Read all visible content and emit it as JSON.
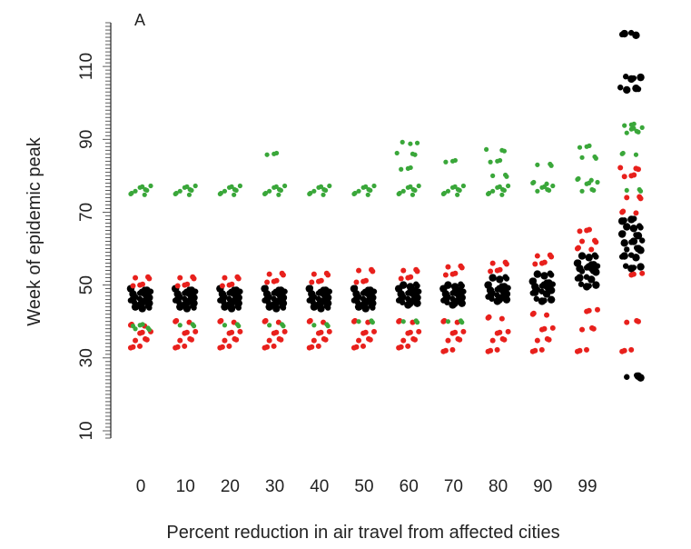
{
  "chart_data": {
    "type": "scatter",
    "panel_label": "A",
    "title": "",
    "xlabel": "Percent reduction in air travel from affected cities",
    "ylabel": "Week of epidemic peak",
    "categories": [
      "0",
      "10",
      "20",
      "30",
      "40",
      "50",
      "60",
      "70",
      "80",
      "90",
      "99",
      ""
    ],
    "yticks": [
      10,
      30,
      50,
      70,
      90,
      110
    ],
    "ylim": [
      8,
      122
    ],
    "grid": false,
    "legend": "none",
    "colors": {
      "black": "#000000",
      "red": "#e8201c",
      "green": "#3aa73a"
    },
    "series": [
      {
        "color": "black",
        "points": [
          [
            0,
            45
          ],
          [
            0,
            46
          ],
          [
            0,
            47
          ],
          [
            0,
            48
          ],
          [
            0,
            49
          ],
          [
            0,
            44
          ],
          [
            1,
            45
          ],
          [
            1,
            46
          ],
          [
            1,
            47
          ],
          [
            1,
            48
          ],
          [
            1,
            49
          ],
          [
            1,
            44
          ],
          [
            2,
            45
          ],
          [
            2,
            46
          ],
          [
            2,
            47
          ],
          [
            2,
            48
          ],
          [
            2,
            49
          ],
          [
            2,
            44
          ],
          [
            3,
            45
          ],
          [
            3,
            46
          ],
          [
            3,
            47
          ],
          [
            3,
            48
          ],
          [
            3,
            49
          ],
          [
            3,
            44
          ],
          [
            4,
            45
          ],
          [
            4,
            46
          ],
          [
            4,
            47
          ],
          [
            4,
            48
          ],
          [
            4,
            49
          ],
          [
            4,
            44
          ],
          [
            5,
            45
          ],
          [
            5,
            46
          ],
          [
            5,
            47
          ],
          [
            5,
            48
          ],
          [
            5,
            49
          ],
          [
            5,
            44
          ],
          [
            6,
            45
          ],
          [
            6,
            46
          ],
          [
            6,
            47
          ],
          [
            6,
            48
          ],
          [
            6,
            49
          ],
          [
            6,
            50
          ],
          [
            7,
            45
          ],
          [
            7,
            46
          ],
          [
            7,
            47
          ],
          [
            7,
            48
          ],
          [
            7,
            49
          ],
          [
            7,
            50
          ],
          [
            8,
            46
          ],
          [
            8,
            47
          ],
          [
            8,
            48
          ],
          [
            8,
            49
          ],
          [
            8,
            50
          ],
          [
            8,
            52
          ],
          [
            9,
            46
          ],
          [
            9,
            48
          ],
          [
            9,
            49
          ],
          [
            9,
            50
          ],
          [
            9,
            51
          ],
          [
            9,
            53
          ],
          [
            10,
            50
          ],
          [
            10,
            52
          ],
          [
            10,
            54
          ],
          [
            10,
            55
          ],
          [
            10,
            56
          ],
          [
            10,
            58
          ],
          [
            11,
            55
          ],
          [
            11,
            58
          ],
          [
            11,
            60
          ],
          [
            11,
            62
          ],
          [
            11,
            64
          ],
          [
            11,
            66
          ],
          [
            11,
            68
          ],
          [
            11,
            104
          ],
          [
            11,
            107
          ],
          [
            11,
            119
          ],
          [
            11,
            25
          ]
        ]
      },
      {
        "color": "red",
        "points": [
          [
            0,
            33
          ],
          [
            0,
            35
          ],
          [
            0,
            37
          ],
          [
            0,
            39
          ],
          [
            0,
            52
          ],
          [
            0,
            50
          ],
          [
            1,
            33
          ],
          [
            1,
            35
          ],
          [
            1,
            37
          ],
          [
            1,
            40
          ],
          [
            1,
            52
          ],
          [
            1,
            50
          ],
          [
            2,
            33
          ],
          [
            2,
            35
          ],
          [
            2,
            37
          ],
          [
            2,
            40
          ],
          [
            2,
            52
          ],
          [
            2,
            50
          ],
          [
            3,
            33
          ],
          [
            3,
            35
          ],
          [
            3,
            37
          ],
          [
            3,
            40
          ],
          [
            3,
            53
          ],
          [
            3,
            51
          ],
          [
            4,
            33
          ],
          [
            4,
            35
          ],
          [
            4,
            37
          ],
          [
            4,
            40
          ],
          [
            4,
            53
          ],
          [
            4,
            51
          ],
          [
            5,
            33
          ],
          [
            5,
            35
          ],
          [
            5,
            37
          ],
          [
            5,
            40
          ],
          [
            5,
            54
          ],
          [
            5,
            51
          ],
          [
            6,
            33
          ],
          [
            6,
            35
          ],
          [
            6,
            37
          ],
          [
            6,
            40
          ],
          [
            6,
            54
          ],
          [
            6,
            52
          ],
          [
            7,
            32
          ],
          [
            7,
            35
          ],
          [
            7,
            37
          ],
          [
            7,
            40
          ],
          [
            7,
            55
          ],
          [
            7,
            53
          ],
          [
            8,
            32
          ],
          [
            8,
            35
          ],
          [
            8,
            37
          ],
          [
            8,
            41
          ],
          [
            8,
            56
          ],
          [
            8,
            54
          ],
          [
            9,
            32
          ],
          [
            9,
            35
          ],
          [
            9,
            38
          ],
          [
            9,
            42
          ],
          [
            9,
            58
          ],
          [
            9,
            56
          ],
          [
            10,
            32
          ],
          [
            10,
            38
          ],
          [
            10,
            43
          ],
          [
            10,
            60
          ],
          [
            10,
            62
          ],
          [
            10,
            65
          ],
          [
            11,
            32
          ],
          [
            11,
            40
          ],
          [
            11,
            53
          ],
          [
            11,
            70
          ],
          [
            11,
            74
          ],
          [
            11,
            80
          ],
          [
            11,
            82
          ]
        ]
      },
      {
        "color": "green",
        "points": [
          [
            0,
            76
          ],
          [
            0,
            77
          ],
          [
            0,
            75
          ],
          [
            0,
            38
          ],
          [
            0,
            39
          ],
          [
            1,
            76
          ],
          [
            1,
            77
          ],
          [
            1,
            75
          ],
          [
            1,
            39
          ],
          [
            2,
            76
          ],
          [
            2,
            77
          ],
          [
            2,
            75
          ],
          [
            2,
            39
          ],
          [
            3,
            76
          ],
          [
            3,
            77
          ],
          [
            3,
            75
          ],
          [
            3,
            39
          ],
          [
            3,
            86
          ],
          [
            4,
            76
          ],
          [
            4,
            77
          ],
          [
            4,
            75
          ],
          [
            4,
            39
          ],
          [
            5,
            76
          ],
          [
            5,
            77
          ],
          [
            5,
            75
          ],
          [
            5,
            40
          ],
          [
            6,
            76
          ],
          [
            6,
            77
          ],
          [
            6,
            75
          ],
          [
            6,
            40
          ],
          [
            6,
            82
          ],
          [
            6,
            86
          ],
          [
            6,
            89
          ],
          [
            7,
            76
          ],
          [
            7,
            77
          ],
          [
            7,
            75
          ],
          [
            7,
            40
          ],
          [
            7,
            84
          ],
          [
            8,
            76
          ],
          [
            8,
            77
          ],
          [
            8,
            75
          ],
          [
            8,
            80
          ],
          [
            8,
            84
          ],
          [
            8,
            87
          ],
          [
            9,
            76
          ],
          [
            9,
            77
          ],
          [
            9,
            78
          ],
          [
            9,
            83
          ],
          [
            10,
            76
          ],
          [
            10,
            78
          ],
          [
            10,
            79
          ],
          [
            10,
            85
          ],
          [
            10,
            88
          ],
          [
            11,
            92
          ],
          [
            11,
            93
          ],
          [
            11,
            86
          ],
          [
            11,
            76
          ],
          [
            11,
            94
          ]
        ]
      }
    ]
  }
}
